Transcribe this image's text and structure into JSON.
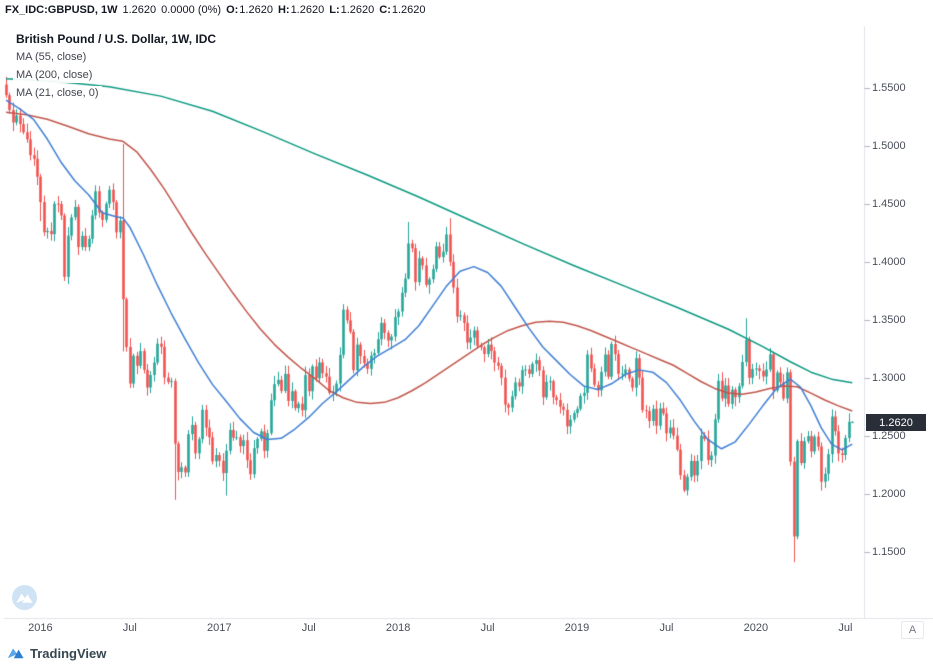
{
  "header": {
    "symbol": "FX_IDC:GBPUSD, 1W",
    "last": "1.2620",
    "change": "0.0000 (0%)",
    "open_label": "O:",
    "open": "1.2620",
    "high_label": "H:",
    "high": "1.2620",
    "low_label": "L:",
    "low": "1.2620",
    "close_label": "C:",
    "close": "1.2620"
  },
  "legend": {
    "title": "British Pound / U.S. Dollar, 1W, IDC"
  },
  "watermark": "TradingView",
  "axis_button": "A",
  "colors": {
    "up": "#26a69a",
    "down": "#ef5350",
    "separator": "#e0e3eb",
    "tick": "#b2b5be",
    "axis_text": "#4a4e59",
    "header_text": "#131722",
    "price_label_bg": "#2a2e39",
    "price_label_text": "#ffffff",
    "logo_blue": "#2d7dd2"
  },
  "chart_data": {
    "type": "candlestick",
    "title": "British Pound / U.S. Dollar, 1W, IDC",
    "pair": "GBP/USD",
    "timeframe": "1W",
    "x_range_description": "weekly candles, late Oct 2015 through mid Jul 2020",
    "y_axis_visible_range": [
      1.1,
      1.6
    ],
    "grid": "off",
    "last_price": 1.262,
    "price_label": "1.2620",
    "y_ticks": [
      "1.5500",
      "1.5000",
      "1.4500",
      "1.4000",
      "1.3500",
      "1.3000",
      "1.2500",
      "1.2000",
      "1.1500"
    ],
    "x_ticks": [
      {
        "i": 10,
        "label": "2016"
      },
      {
        "i": 36,
        "label": "Jul"
      },
      {
        "i": 62,
        "label": "2017"
      },
      {
        "i": 88,
        "label": "Jul"
      },
      {
        "i": 114,
        "label": "2018"
      },
      {
        "i": 140,
        "label": "Jul"
      },
      {
        "i": 166,
        "label": "2019"
      },
      {
        "i": 192,
        "label": "Jul"
      },
      {
        "i": 218,
        "label": "2020"
      },
      {
        "i": 244,
        "label": "Jul"
      }
    ],
    "first_open": 1.553,
    "closes": [
      1.5438,
      1.531,
      1.5203,
      1.5263,
      1.5189,
      1.5118,
      1.5057,
      1.4921,
      1.489,
      1.4735,
      1.4517,
      1.4257,
      1.4268,
      1.424,
      1.4503,
      1.45,
      1.4401,
      1.3872,
      1.4227,
      1.4385,
      1.4475,
      1.4129,
      1.4225,
      1.4128,
      1.4199,
      1.4401,
      1.461,
      1.4425,
      1.4363,
      1.4502,
      1.4623,
      1.4516,
      1.4256,
      1.4357,
      1.3679,
      1.3267,
      1.2952,
      1.3192,
      1.3106,
      1.3232,
      1.307,
      1.2918,
      1.3026,
      1.3133,
      1.3296,
      1.3269,
      1.3004,
      1.2966,
      1.2973,
      1.2434,
      1.219,
      1.223,
      1.2186,
      1.2516,
      1.2595,
      1.2351,
      1.2473,
      1.2726,
      1.2572,
      1.2488,
      1.2282,
      1.2336,
      1.2286,
      1.218,
      1.2373,
      1.2552,
      1.2486,
      1.2489,
      1.2413,
      1.2464,
      1.2291,
      1.217,
      1.2395,
      1.2475,
      1.254,
      1.2372,
      1.2524,
      1.2808,
      1.2947,
      1.2984,
      1.2889,
      1.3035,
      1.2802,
      1.2886,
      1.274,
      1.2778,
      1.2722,
      1.3025,
      1.2886,
      1.31,
      1.2997,
      1.3134,
      1.3041,
      1.3012,
      1.2872,
      1.2881,
      1.2952,
      1.3199,
      1.3589,
      1.3497,
      1.3399,
      1.3068,
      1.3288,
      1.3189,
      1.3128,
      1.3079,
      1.3193,
      1.3216,
      1.3334,
      1.3475,
      1.339,
      1.3323,
      1.3357,
      1.3525,
      1.3573,
      1.3735,
      1.3857,
      1.416,
      1.4119,
      1.3827,
      1.4032,
      1.397,
      1.3803,
      1.3851,
      1.3939,
      1.4134,
      1.4042,
      1.4089,
      1.4237,
      1.4001,
      1.378,
      1.353,
      1.354,
      1.3475,
      1.3306,
      1.3348,
      1.341,
      1.3277,
      1.3264,
      1.3207,
      1.3288,
      1.3233,
      1.3133,
      1.3105,
      1.3002,
      1.277,
      1.2745,
      1.2842,
      1.2962,
      1.2927,
      1.3068,
      1.3074,
      1.3036,
      1.3122,
      1.3154,
      1.3066,
      1.2834,
      1.2967,
      1.2972,
      1.2834,
      1.281,
      1.2752,
      1.2726,
      1.2583,
      1.2642,
      1.2697,
      1.2734,
      1.2846,
      1.2872,
      1.3202,
      1.3082,
      1.2941,
      1.2894,
      1.3053,
      1.3202,
      1.3011,
      1.3293,
      1.3206,
      1.3036,
      1.3036,
      1.3074,
      1.2995,
      1.2917,
      1.3171,
      1.3003,
      1.2723,
      1.2715,
      1.2629,
      1.2734,
      1.2588,
      1.2738,
      1.2695,
      1.2523,
      1.2573,
      1.2503,
      1.2383,
      1.2163,
      1.2031,
      1.2148,
      1.2285,
      1.216,
      1.2285,
      1.2504,
      1.2475,
      1.2292,
      1.2332,
      1.2644,
      1.2976,
      1.2823,
      1.2935,
      1.2777,
      1.29,
      1.2834,
      1.293,
      1.3138,
      1.333,
      1.3002,
      1.3077,
      1.3083,
      1.3061,
      1.3013,
      1.3073,
      1.3204,
      1.2892,
      1.3047,
      1.2964,
      1.2823,
      1.3049,
      1.2279,
      1.1634,
      1.2457,
      1.2267,
      1.2455,
      1.2499,
      1.2367,
      1.2495,
      1.241,
      1.2106,
      1.2174,
      1.2343,
      1.2668,
      1.2541,
      1.235,
      1.2336,
      1.2483,
      1.2623,
      1.262
    ],
    "overrides": {
      "10": [
        1.4735,
        1.476,
        1.4352,
        1.4517
      ],
      "17": [
        1.4401,
        1.442,
        1.3836,
        1.3872
      ],
      "34": [
        1.4357,
        1.5018,
        1.3229,
        1.3679
      ],
      "49": [
        1.2973,
        1.2995,
        1.195,
        1.2434
      ],
      "64": [
        1.218,
        1.2432,
        1.1986,
        1.2373
      ],
      "117": [
        1.3857,
        1.4345,
        1.385,
        1.416
      ],
      "129": [
        1.4237,
        1.4377,
        1.3965,
        1.4001
      ],
      "197": [
        1.2163,
        1.2208,
        1.2015,
        1.2031
      ],
      "215": [
        1.3138,
        1.3515,
        1.31,
        1.333
      ],
      "229": [
        1.2279,
        1.232,
        1.1412,
        1.1634
      ],
      "230": [
        1.1634,
        1.247,
        1.161,
        1.2457
      ],
      "246": [
        1.262,
        1.2628,
        1.2612,
        1.262
      ]
    },
    "ma_lines": [
      {
        "label": "MA (55, close)",
        "period": 55,
        "color": "#c0564b",
        "points": [
          [
            0,
            1.529
          ],
          [
            6,
            1.527
          ],
          [
            12,
            1.523
          ],
          [
            18,
            1.517
          ],
          [
            24,
            1.5105
          ],
          [
            30,
            1.506
          ],
          [
            34,
            1.504
          ],
          [
            38,
            1.495
          ],
          [
            42,
            1.48
          ],
          [
            46,
            1.463
          ],
          [
            50,
            1.444
          ],
          [
            54,
            1.425
          ],
          [
            58,
            1.407
          ],
          [
            62,
            1.39
          ],
          [
            66,
            1.373
          ],
          [
            70,
            1.357
          ],
          [
            74,
            1.342
          ],
          [
            78,
            1.329
          ],
          [
            82,
            1.318
          ],
          [
            86,
            1.308
          ],
          [
            90,
            1.299
          ],
          [
            94,
            1.289
          ],
          [
            98,
            1.283
          ],
          [
            102,
            1.279
          ],
          [
            106,
            1.278
          ],
          [
            110,
            1.279
          ],
          [
            114,
            1.283
          ],
          [
            118,
            1.289
          ],
          [
            122,
            1.296
          ],
          [
            126,
            1.304
          ],
          [
            130,
            1.312
          ],
          [
            134,
            1.32
          ],
          [
            138,
            1.328
          ],
          [
            142,
            1.335
          ],
          [
            146,
            1.341
          ],
          [
            150,
            1.345
          ],
          [
            154,
            1.348
          ],
          [
            158,
            1.349
          ],
          [
            162,
            1.348
          ],
          [
            166,
            1.345
          ],
          [
            170,
            1.341
          ],
          [
            174,
            1.336
          ],
          [
            178,
            1.331
          ],
          [
            182,
            1.326
          ],
          [
            186,
            1.321
          ],
          [
            190,
            1.316
          ],
          [
            194,
            1.311
          ],
          [
            198,
            1.304
          ],
          [
            202,
            1.297
          ],
          [
            206,
            1.291
          ],
          [
            210,
            1.287
          ],
          [
            214,
            1.286
          ],
          [
            218,
            1.288
          ],
          [
            222,
            1.291
          ],
          [
            226,
            1.293
          ],
          [
            230,
            1.2925
          ],
          [
            234,
            1.287
          ],
          [
            238,
            1.281
          ],
          [
            242,
            1.276
          ],
          [
            246,
            1.2715
          ]
        ]
      },
      {
        "label": "MA (200, close)",
        "period": 200,
        "color": "#0b9981",
        "points": [
          [
            0,
            1.558
          ],
          [
            15,
            1.5555
          ],
          [
            30,
            1.551
          ],
          [
            45,
            1.543
          ],
          [
            60,
            1.53
          ],
          [
            75,
            1.512
          ],
          [
            90,
            1.493
          ],
          [
            105,
            1.475
          ],
          [
            120,
            1.456
          ],
          [
            135,
            1.436
          ],
          [
            150,
            1.416
          ],
          [
            165,
            1.397
          ],
          [
            180,
            1.379
          ],
          [
            195,
            1.361
          ],
          [
            210,
            1.342
          ],
          [
            220,
            1.327
          ],
          [
            228,
            1.314
          ],
          [
            234,
            1.305
          ],
          [
            240,
            1.299
          ],
          [
            246,
            1.296
          ]
        ]
      },
      {
        "label": "MA (21, close, 0)",
        "period": 21,
        "color": "#3f7fd4",
        "points": [
          [
            0,
            1.5395
          ],
          [
            4,
            1.532
          ],
          [
            8,
            1.523
          ],
          [
            12,
            1.506
          ],
          [
            16,
            1.486
          ],
          [
            20,
            1.47
          ],
          [
            24,
            1.458
          ],
          [
            28,
            1.4425
          ],
          [
            32,
            1.439
          ],
          [
            34,
            1.438
          ],
          [
            36,
            1.43
          ],
          [
            40,
            1.406
          ],
          [
            44,
            1.38
          ],
          [
            48,
            1.356
          ],
          [
            52,
            1.334
          ],
          [
            56,
            1.313
          ],
          [
            60,
            1.2945
          ],
          [
            64,
            1.28
          ],
          [
            68,
            1.265
          ],
          [
            72,
            1.253
          ],
          [
            76,
            1.247
          ],
          [
            80,
            1.248
          ],
          [
            84,
            1.256
          ],
          [
            88,
            1.266
          ],
          [
            92,
            1.278
          ],
          [
            96,
            1.288
          ],
          [
            100,
            1.299
          ],
          [
            104,
            1.31
          ],
          [
            108,
            1.319
          ],
          [
            112,
            1.326
          ],
          [
            116,
            1.333
          ],
          [
            120,
            1.345
          ],
          [
            124,
            1.362
          ],
          [
            128,
            1.379
          ],
          [
            132,
            1.392
          ],
          [
            136,
            1.396
          ],
          [
            140,
            1.391
          ],
          [
            144,
            1.379
          ],
          [
            148,
            1.361
          ],
          [
            152,
            1.343
          ],
          [
            156,
            1.327
          ],
          [
            160,
            1.315
          ],
          [
            164,
            1.303
          ],
          [
            168,
            1.293
          ],
          [
            172,
            1.29
          ],
          [
            176,
            1.295
          ],
          [
            180,
            1.303
          ],
          [
            184,
            1.307
          ],
          [
            188,
            1.305
          ],
          [
            192,
            1.296
          ],
          [
            196,
            1.281
          ],
          [
            200,
            1.263
          ],
          [
            204,
            1.247
          ],
          [
            208,
            1.239
          ],
          [
            212,
            1.245
          ],
          [
            216,
            1.26
          ],
          [
            220,
            1.276
          ],
          [
            224,
            1.291
          ],
          [
            228,
            1.299
          ],
          [
            231,
            1.292
          ],
          [
            234,
            1.276
          ],
          [
            237,
            1.257
          ],
          [
            240,
            1.243
          ],
          [
            243,
            1.238
          ],
          [
            246,
            1.243
          ]
        ]
      }
    ]
  }
}
